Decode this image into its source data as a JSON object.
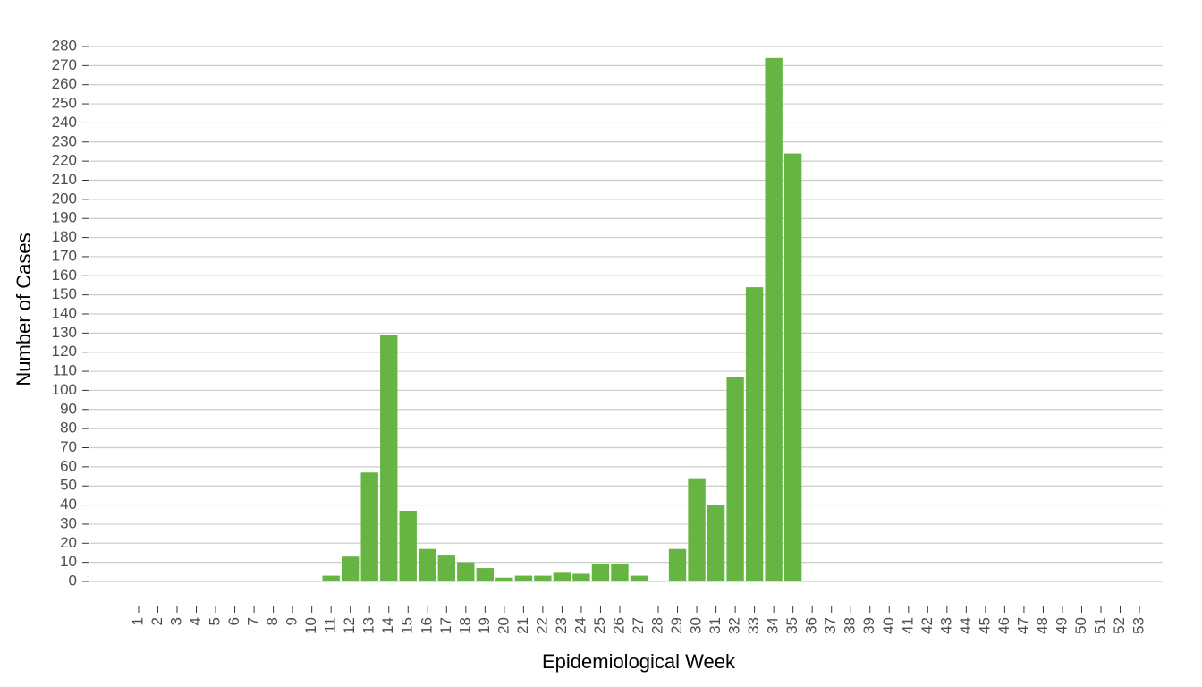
{
  "chart_data": {
    "type": "bar",
    "xlabel": "Epidemiological Week",
    "ylabel": "Number of Cases",
    "categories": [
      "1",
      "2",
      "3",
      "4",
      "5",
      "6",
      "7",
      "8",
      "9",
      "10",
      "11",
      "12",
      "13",
      "14",
      "15",
      "16",
      "17",
      "18",
      "19",
      "20",
      "21",
      "22",
      "23",
      "24",
      "25",
      "26",
      "27",
      "28",
      "29",
      "30",
      "31",
      "32",
      "33",
      "34",
      "35",
      "36",
      "37",
      "38",
      "39",
      "40",
      "41",
      "42",
      "43",
      "44",
      "45",
      "46",
      "47",
      "48",
      "49",
      "50",
      "51",
      "52",
      "53"
    ],
    "values": [
      0,
      0,
      0,
      0,
      0,
      0,
      0,
      0,
      0,
      0,
      3,
      13,
      57,
      129,
      37,
      17,
      14,
      10,
      7,
      2,
      3,
      3,
      5,
      4,
      9,
      9,
      3,
      0,
      17,
      54,
      40,
      107,
      154,
      274,
      224,
      0,
      0,
      0,
      0,
      0,
      0,
      0,
      0,
      0,
      0,
      0,
      0,
      0,
      0,
      0,
      0,
      0,
      0
    ],
    "color": "#66b543",
    "ylim": [
      0,
      280
    ],
    "yticks": [
      0,
      10,
      20,
      30,
      40,
      50,
      60,
      70,
      80,
      90,
      100,
      110,
      120,
      130,
      140,
      150,
      160,
      170,
      180,
      190,
      200,
      210,
      220,
      230,
      240,
      250,
      260,
      270,
      280
    ],
    "grid": true
  }
}
